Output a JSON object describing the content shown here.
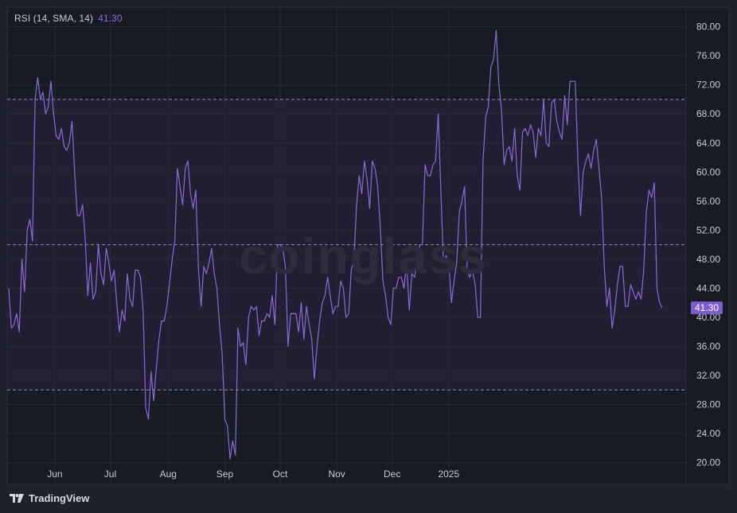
{
  "legend": {
    "name": "RSI (14, SMA, 14)",
    "value": "41.30"
  },
  "watermark": "coinglass",
  "brand": "TradingView",
  "colors": {
    "background": "#1f222c",
    "plot": "#181a24",
    "band": "#231f33",
    "line": "#8a6bd8",
    "grid": "#262a36",
    "badge": "#7c5cd0"
  },
  "chart_data": {
    "type": "line",
    "title": "RSI (14, SMA, 14)",
    "current_value": 41.3,
    "ylim": [
      17,
      82.7
    ],
    "yticks": [
      "80.00",
      "76.00",
      "72.00",
      "68.00",
      "64.00",
      "60.00",
      "56.00",
      "52.00",
      "48.00",
      "44.00",
      "40.00",
      "36.00",
      "32.00",
      "28.00",
      "24.00",
      "20.00"
    ],
    "xticks": [
      "Jun",
      "Jul",
      "Aug",
      "Sep",
      "Oct",
      "Nov",
      "Dec",
      "2025"
    ],
    "reference_lines": [
      70,
      50,
      30
    ],
    "grid": true,
    "x_index_labels": {
      "Jun": 17.5,
      "Jul": 38.5,
      "Aug": 60.5,
      "Sep": 82,
      "Oct": 103,
      "Nov": 124.5,
      "Dec": 145.5,
      "2025": 167
    },
    "series": [
      {
        "values": [
          44,
          38.5,
          39,
          40.5,
          38,
          48,
          43.5,
          52,
          53.5,
          50.5,
          70,
          73,
          70,
          71,
          68,
          69,
          72.5,
          68,
          65,
          64.5,
          66,
          63.5,
          63,
          64,
          67,
          60,
          54,
          54,
          55.5,
          51,
          43,
          47.5,
          42.5,
          43.5,
          50,
          46,
          44.5,
          49.5,
          47.5,
          45,
          46.5,
          42,
          38,
          41,
          39.5,
          46,
          42.5,
          41.5,
          46.5,
          46.5,
          45.5,
          41,
          27.5,
          26,
          32.5,
          28.5,
          33,
          37,
          39.5,
          39.5,
          41.5,
          44.5,
          48,
          50.5,
          60.5,
          58,
          55.5,
          60.5,
          61.5,
          57,
          55,
          57.5,
          46.5,
          41.5,
          47,
          46,
          47.5,
          49.5,
          46,
          44,
          39,
          35,
          26,
          25,
          20.5,
          23,
          21,
          38.5,
          36,
          36.5,
          33.5,
          40,
          41.5,
          41,
          41.5,
          37.5,
          39.5,
          39.5,
          40.5,
          40,
          43,
          39,
          50,
          50,
          49.5,
          47,
          36,
          40.5,
          40.5,
          40.5,
          38,
          42,
          37,
          41.5,
          39,
          37,
          31.5,
          36,
          39.5,
          42,
          43,
          45.5,
          43,
          40.5,
          41.5,
          41.5,
          45,
          44,
          40,
          40.5,
          46.5,
          48,
          55.5,
          59.5,
          57,
          61.5,
          59,
          55,
          61.5,
          60.5,
          58,
          52.5,
          45,
          43,
          40,
          39,
          44,
          44,
          45.5,
          45.5,
          44,
          47.5,
          41,
          46,
          45.5,
          47.5,
          50,
          50,
          61,
          59.5,
          59.5,
          61,
          61.5,
          68,
          57.5,
          47.5,
          48.5,
          47.5,
          42,
          45,
          47.5,
          54.5,
          56,
          58,
          46.5,
          45.5,
          46.5,
          44.5,
          40,
          40,
          61.5,
          67.5,
          69,
          74.5,
          75.5,
          79.5,
          72,
          68.5,
          61,
          63,
          63.5,
          61.5,
          66,
          59.5,
          57.5,
          65.5,
          66,
          65,
          66.5,
          65.5,
          62,
          66,
          65,
          70,
          64,
          63.5,
          69.5,
          70,
          67,
          65.5,
          64.5,
          70.5,
          66.5,
          72.5,
          72.5,
          72.5,
          61.5,
          54,
          60,
          61.5,
          62.5,
          60.5,
          63,
          64.5,
          60.5,
          56.5,
          47,
          41.5,
          44,
          38.5,
          41,
          44.5,
          47,
          47,
          41.5,
          41.5,
          44.5,
          43.5,
          42.5,
          43.5,
          42.5,
          46.5,
          54.5,
          57.5,
          56.5,
          58.5,
          44,
          42,
          41.3
        ]
      }
    ]
  }
}
